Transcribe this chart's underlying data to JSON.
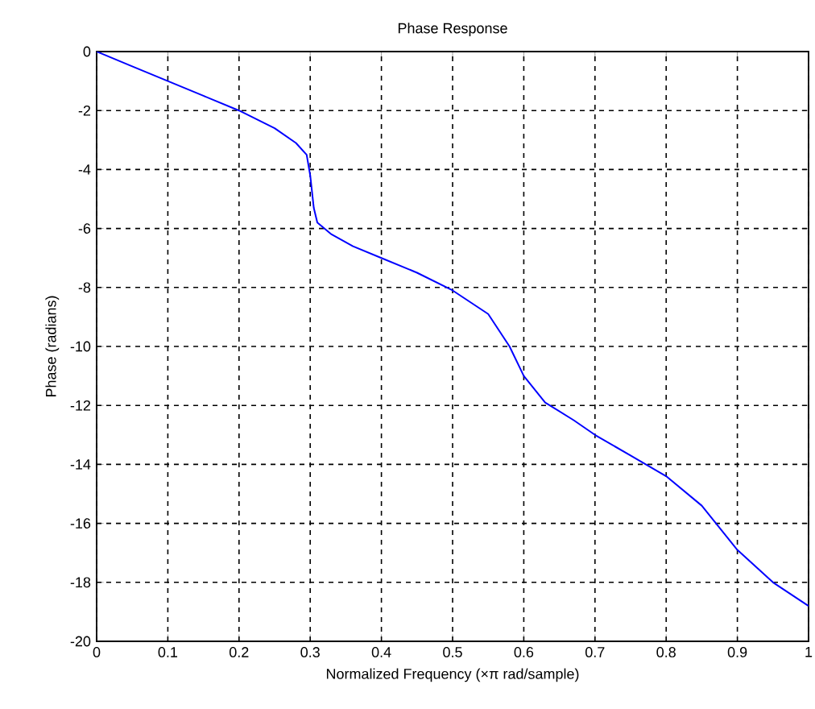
{
  "chart_data": {
    "type": "line",
    "title": "Phase Response",
    "xlabel": "Normalized Frequency  (×π rad/sample)",
    "ylabel": "Phase (radians)",
    "x": [
      0,
      0.05,
      0.1,
      0.15,
      0.2,
      0.25,
      0.28,
      0.295,
      0.3,
      0.305,
      0.31,
      0.33,
      0.36,
      0.4,
      0.45,
      0.5,
      0.55,
      0.58,
      0.6,
      0.63,
      0.67,
      0.7,
      0.75,
      0.8,
      0.85,
      0.9,
      0.95,
      1
    ],
    "series": [
      {
        "color": "#0000ff",
        "values": [
          0,
          -0.5,
          -1,
          -1.5,
          -2,
          -2.6,
          -3.1,
          -3.5,
          -4.2,
          -5.3,
          -5.8,
          -6.2,
          -6.6,
          -7,
          -7.5,
          -8.1,
          -8.9,
          -10,
          -11,
          -11.9,
          -12.5,
          -13,
          -13.7,
          -14.4,
          -15.4,
          -16.9,
          -18,
          -18.8
        ]
      }
    ],
    "xlim": [
      0,
      1
    ],
    "ylim": [
      -20,
      0
    ],
    "xticks": [
      0,
      0.1,
      0.2,
      0.3,
      0.4,
      0.5,
      0.6,
      0.7,
      0.8,
      0.9,
      1
    ],
    "yticks": [
      -20,
      -18,
      -16,
      -14,
      -12,
      -10,
      -8,
      -6,
      -4,
      -2,
      0
    ],
    "grid": true,
    "line_style": "solid",
    "marker": "none"
  }
}
